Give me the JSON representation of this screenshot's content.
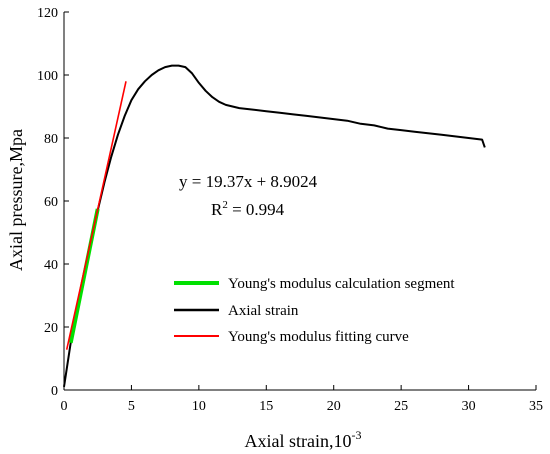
{
  "chart_data": {
    "type": "line",
    "title": "",
    "xlabel": "Axial strain,10",
    "xlabel_exponent": "-3",
    "ylabel": "Axial pressure,Mpa",
    "xlim": [
      0,
      35
    ],
    "ylim": [
      0,
      120
    ],
    "x_ticks": [
      0,
      5,
      10,
      15,
      20,
      25,
      30,
      35
    ],
    "y_ticks": [
      0,
      20,
      40,
      60,
      80,
      100,
      120
    ],
    "grid": false,
    "legend_position": "lower-right",
    "series": [
      {
        "name": "Young's modulus calculation segment",
        "color": "#00e000",
        "x": [
          0.5,
          2.5
        ],
        "y": [
          15.0,
          57.5
        ]
      },
      {
        "name": "Axial strain",
        "color": "#000000",
        "x": [
          0,
          0.5,
          1.0,
          1.5,
          2.0,
          2.5,
          3.0,
          3.5,
          4.0,
          4.5,
          5.0,
          5.5,
          6.0,
          6.5,
          7.0,
          7.5,
          8.0,
          8.5,
          9.0,
          9.5,
          10.0,
          10.5,
          11.0,
          11.5,
          12.0,
          13.0,
          14.0,
          15.0,
          16.0,
          17.0,
          18.0,
          19.0,
          20.0,
          21.0,
          22.0,
          23.0,
          24.0,
          25.0,
          26.0,
          27.0,
          28.0,
          29.0,
          30.0,
          31.0,
          31.2
        ],
        "y": [
          1,
          15,
          25,
          37,
          48,
          57,
          66,
          74,
          81,
          87,
          92,
          95.5,
          98,
          100,
          101.5,
          102.5,
          103,
          103,
          102.5,
          100.5,
          97.5,
          95,
          93,
          91.5,
          90.5,
          89.5,
          89,
          88.5,
          88,
          87.5,
          87,
          86.5,
          86,
          85.5,
          84.5,
          84,
          83,
          82.5,
          82,
          81.5,
          81,
          80.5,
          80,
          79.5,
          77
        ]
      },
      {
        "name": "Young's modulus fitting curve",
        "color": "#ff0000",
        "x": [
          0.2,
          4.6
        ],
        "y": [
          12.8,
          98.0
        ]
      }
    ],
    "annotations": {
      "equation": "y = 19.37x + 8.9024",
      "r2_prefix": "R",
      "r2_exponent": "2",
      "r2_suffix": " = 0.994"
    }
  }
}
